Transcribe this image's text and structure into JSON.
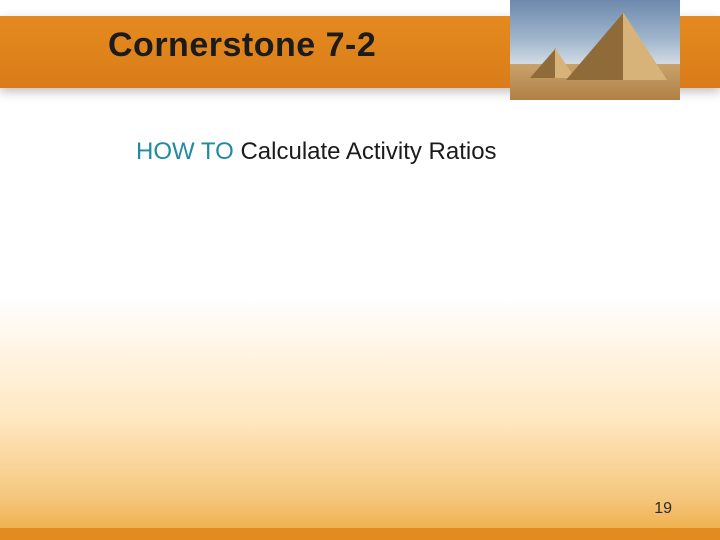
{
  "header": {
    "title": "Cornerstone 7-2",
    "band_gradient_top": "#e58a1f",
    "band_gradient_bottom": "#d97c19",
    "title_color": "#1b1b1b",
    "title_fontsize": 34
  },
  "pyramid_image": {
    "sky_top": "#6d89ad",
    "sky_bottom": "#d2dbe4",
    "sand_top": "#c9a26b",
    "sand_bottom": "#b08147",
    "pyramid_light": "#d7b37a",
    "pyramid_shade": "#8f6b3a"
  },
  "subtitle": {
    "prefix": "HOW TO ",
    "rest": "Calculate Activity Ratios",
    "color": "#1f8ba3",
    "fontsize": 24
  },
  "background": {
    "gradient_stops": [
      "#ffffff",
      "#ffe7c0",
      "#f5c77e",
      "#eda93f"
    ]
  },
  "footer": {
    "page_number": "19",
    "bar_color": "#e48b20"
  }
}
